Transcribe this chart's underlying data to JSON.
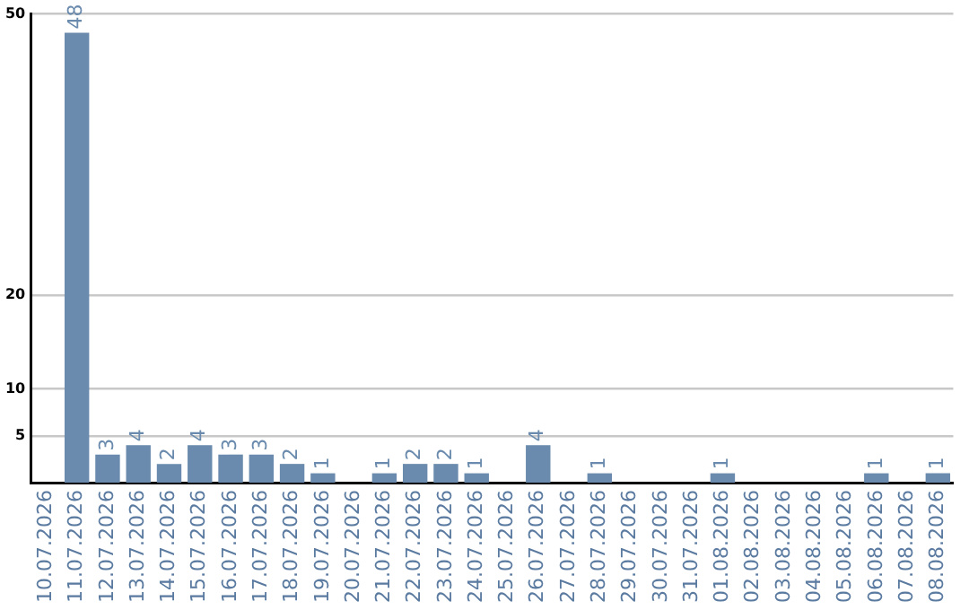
{
  "chart_data": {
    "type": "bar",
    "categories": [
      "10.07.2026",
      "11.07.2026",
      "12.07.2026",
      "13.07.2026",
      "14.07.2026",
      "15.07.2026",
      "16.07.2026",
      "17.07.2026",
      "18.07.2026",
      "19.07.2026",
      "20.07.2026",
      "21.07.2026",
      "22.07.2026",
      "23.07.2026",
      "24.07.2026",
      "25.07.2026",
      "26.07.2026",
      "27.07.2026",
      "28.07.2026",
      "29.07.2026",
      "30.07.2026",
      "31.07.2026",
      "01.08.2026",
      "02.08.2026",
      "03.08.2026",
      "04.08.2026",
      "05.08.2026",
      "06.08.2026",
      "07.08.2026",
      "08.08.2026"
    ],
    "values": [
      0,
      48,
      3,
      4,
      2,
      4,
      3,
      3,
      2,
      1,
      0,
      1,
      2,
      2,
      1,
      0,
      4,
      0,
      1,
      0,
      0,
      0,
      1,
      0,
      0,
      0,
      0,
      1,
      0,
      1
    ],
    "value_labels": [
      null,
      "48",
      "3",
      "4",
      "2",
      "4",
      "3",
      "3",
      "2",
      "1",
      null,
      "1",
      "2",
      "2",
      "1",
      null,
      "4",
      null,
      "1",
      null,
      null,
      null,
      "1",
      null,
      null,
      null,
      null,
      "1",
      null,
      "1"
    ],
    "color": "#6a8bad",
    "ylim": [
      0,
      50
    ],
    "yticks": [
      5,
      10,
      20,
      50
    ],
    "grid": "y",
    "legend": false
  }
}
